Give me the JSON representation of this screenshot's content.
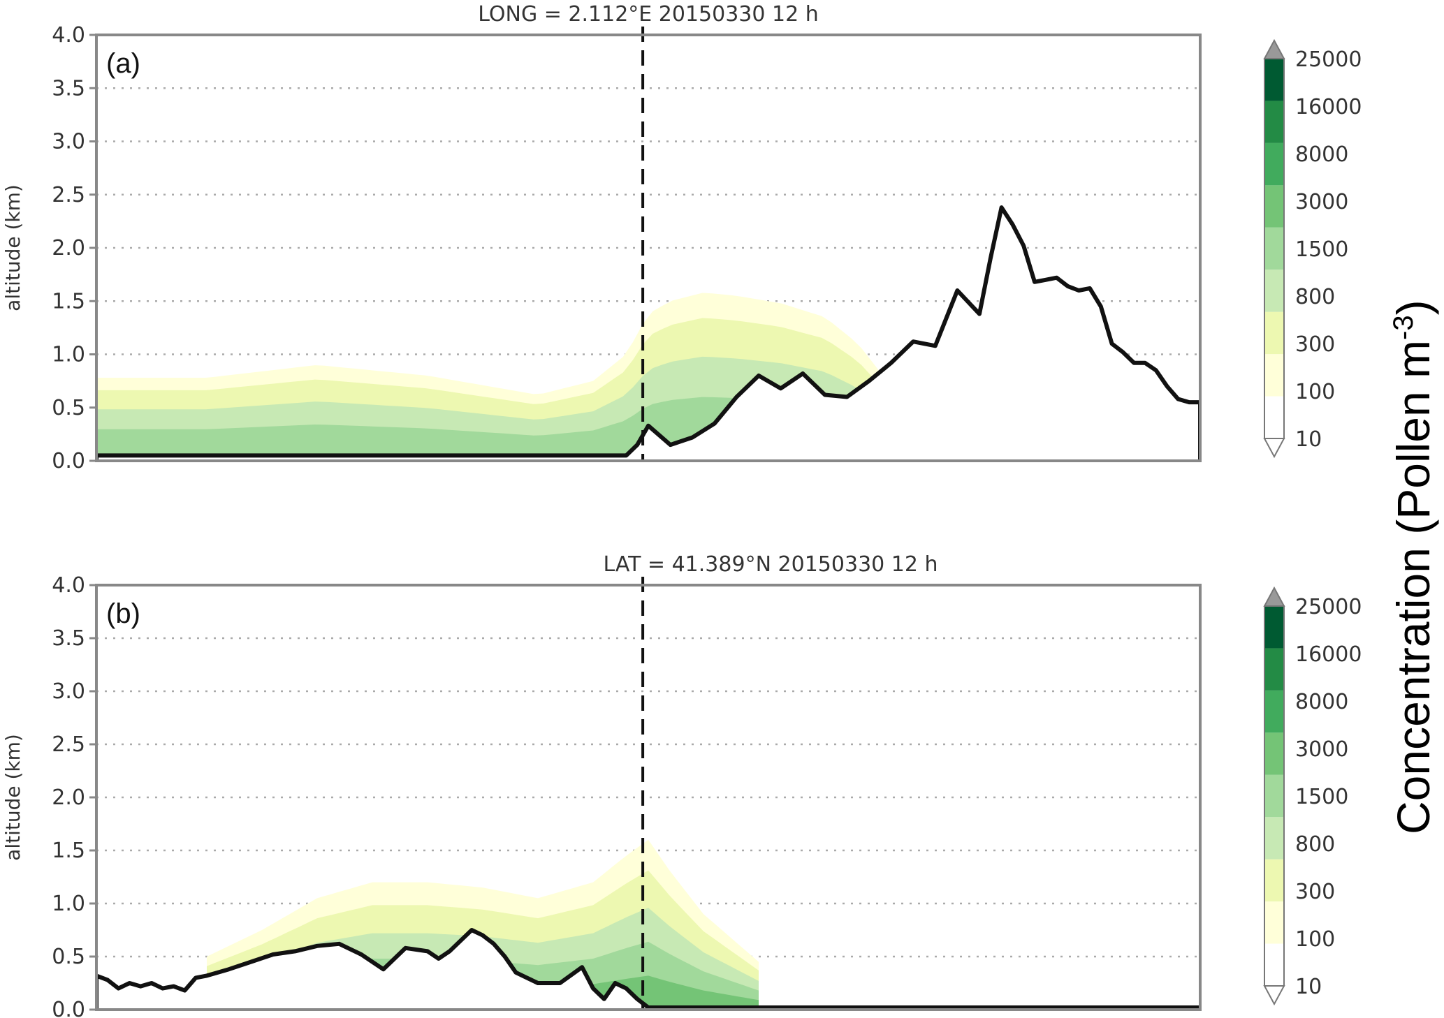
{
  "chart_data": [
    {
      "type": "contour",
      "panel_label": "(a)",
      "title": "LONG = 2.112°E 20150330 12 h",
      "ylabel": "altitude (km)",
      "xlabel": "",
      "ylim": [
        0,
        4.0
      ],
      "yticks": [
        "0.0",
        "0.5",
        "1.0",
        "1.5",
        "2.0",
        "2.5",
        "3.0",
        "3.5",
        "4.0"
      ],
      "grid": "horizontal dotted",
      "marker_x_fraction": 0.495,
      "terrain": {
        "x": [
          0,
          0.05,
          0.1,
          0.2,
          0.3,
          0.4,
          0.48,
          0.49,
          0.5,
          0.52,
          0.54,
          0.56,
          0.58,
          0.6,
          0.62,
          0.64,
          0.66,
          0.68,
          0.7,
          0.72,
          0.74,
          0.76,
          0.78,
          0.8,
          0.81,
          0.82,
          0.83,
          0.84,
          0.85,
          0.86,
          0.87,
          0.88,
          0.89,
          0.9,
          0.91,
          0.92,
          0.93,
          0.94,
          0.95,
          0.96,
          0.97,
          0.98,
          0.99,
          1.0
        ],
        "y": [
          0.05,
          0.05,
          0.05,
          0.05,
          0.05,
          0.05,
          0.05,
          0.15,
          0.33,
          0.15,
          0.22,
          0.35,
          0.6,
          0.8,
          0.68,
          0.82,
          0.62,
          0.6,
          0.75,
          0.92,
          1.12,
          1.08,
          1.6,
          1.38,
          1.9,
          2.38,
          2.22,
          2.02,
          1.68,
          1.7,
          1.72,
          1.64,
          1.6,
          1.62,
          1.45,
          1.1,
          1.02,
          0.92,
          0.92,
          0.85,
          0.7,
          0.58,
          0.55,
          0.55
        ]
      },
      "pollen_top_km": {
        "x": [
          0,
          0.1,
          0.2,
          0.3,
          0.4,
          0.45,
          0.48,
          0.5,
          0.52,
          0.55,
          0.58,
          0.62,
          0.66,
          0.69,
          0.72
        ],
        "y": [
          0.78,
          0.78,
          0.9,
          0.8,
          0.62,
          0.75,
          1.0,
          1.38,
          1.5,
          1.58,
          1.55,
          1.48,
          1.35,
          1.1,
          0.7
        ]
      },
      "pollen_max_class": "1500"
    },
    {
      "type": "contour",
      "panel_label": "(b)",
      "title": "LAT = 41.389°N 20150330 12 h",
      "ylabel": "altitude (km)",
      "xlabel": "",
      "ylim": [
        0,
        4.0
      ],
      "yticks": [
        "0.0",
        "0.5",
        "1.0",
        "1.5",
        "2.0",
        "2.5",
        "3.0",
        "3.5",
        "4.0"
      ],
      "grid": "horizontal dotted",
      "marker_x_fraction": 0.495,
      "terrain": {
        "x": [
          0,
          0.01,
          0.02,
          0.03,
          0.04,
          0.05,
          0.06,
          0.07,
          0.08,
          0.09,
          0.1,
          0.12,
          0.14,
          0.16,
          0.18,
          0.2,
          0.22,
          0.24,
          0.26,
          0.28,
          0.3,
          0.31,
          0.32,
          0.34,
          0.35,
          0.36,
          0.37,
          0.38,
          0.39,
          0.4,
          0.42,
          0.44,
          0.45,
          0.46,
          0.47,
          0.48,
          0.49,
          0.5,
          0.51,
          0.52,
          0.55,
          0.6,
          0.7,
          0.8,
          0.9,
          1.0
        ],
        "y": [
          0.32,
          0.28,
          0.2,
          0.25,
          0.22,
          0.25,
          0.2,
          0.22,
          0.18,
          0.3,
          0.32,
          0.38,
          0.45,
          0.52,
          0.55,
          0.6,
          0.62,
          0.52,
          0.38,
          0.58,
          0.55,
          0.48,
          0.55,
          0.75,
          0.7,
          0.62,
          0.5,
          0.35,
          0.3,
          0.25,
          0.25,
          0.4,
          0.2,
          0.1,
          0.25,
          0.2,
          0.1,
          0.02,
          0.02,
          0.02,
          0.02,
          0.02,
          0.02,
          0.02,
          0.02,
          0.02
        ]
      },
      "pollen_top_km": {
        "x": [
          0.1,
          0.15,
          0.2,
          0.25,
          0.3,
          0.35,
          0.4,
          0.45,
          0.48,
          0.5,
          0.52,
          0.55,
          0.6
        ],
        "y": [
          0.5,
          0.75,
          1.05,
          1.2,
          1.2,
          1.15,
          1.05,
          1.2,
          1.45,
          1.6,
          1.3,
          0.9,
          0.45
        ]
      },
      "pollen_max_class": "3000"
    }
  ],
  "colorbar": {
    "label": "Concentration (Pollen m-3)",
    "label_main": "Concentration (Pollen m",
    "label_sup": "-3",
    "label_close": ")",
    "levels": [
      "10",
      "100",
      "300",
      "800",
      "1500",
      "3000",
      "8000",
      "16000",
      "25000"
    ],
    "colors": [
      "#ffffff",
      "#ffffd9",
      "#edf8b1",
      "#c7e9b4",
      "#a1d99b",
      "#74c476",
      "#41ab5d",
      "#238b45",
      "#005a32"
    ],
    "extend": "both",
    "extend_color": "#999999"
  },
  "palette": {
    "terrain_line": "#111111",
    "dashed_marker": "#111111",
    "frame": "#888888",
    "grid": "#aaaaaa"
  }
}
